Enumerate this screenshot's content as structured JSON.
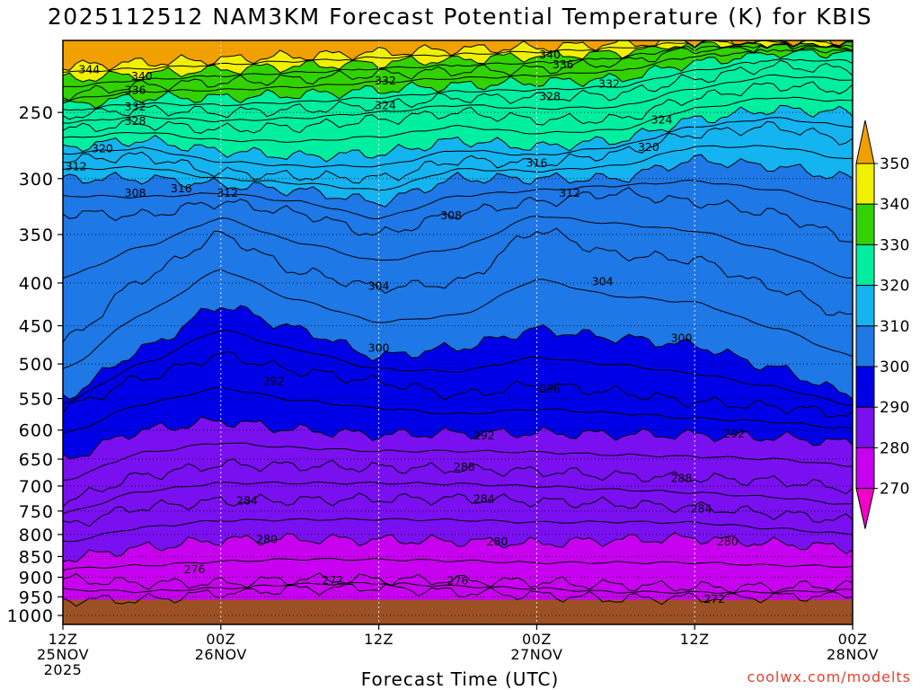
{
  "chart_data": {
    "type": "heatmap",
    "title": "2025112512 NAM3KM Forecast Potential Temperature (K) for KBIS",
    "xlabel": "Forecast Time (UTC)",
    "ylabel": "",
    "y_scale": "log (pressure)",
    "y_direction": "pressure decreasing upward",
    "yticks": [
      250,
      300,
      350,
      400,
      450,
      500,
      550,
      600,
      650,
      700,
      750,
      800,
      850,
      900,
      950,
      1000
    ],
    "ylim": [
      1025,
      205
    ],
    "x_ticks": [
      {
        "hours": 0,
        "l1": "12Z",
        "l2": "25NOV",
        "l3": "2025"
      },
      {
        "hours": 12,
        "l1": "00Z",
        "l2": "26NOV",
        "l3": ""
      },
      {
        "hours": 24,
        "l1": "12Z",
        "l2": "",
        "l3": ""
      },
      {
        "hours": 36,
        "l1": "00Z",
        "l2": "27NOV",
        "l3": ""
      },
      {
        "hours": 48,
        "l1": "12Z",
        "l2": "",
        "l3": ""
      },
      {
        "hours": 60,
        "l1": "00Z",
        "l2": "28NOV",
        "l3": ""
      }
    ],
    "xlim": [
      0,
      60
    ],
    "grid": true,
    "surface_pressure_hpa": 958,
    "color_levels": [
      {
        "from": 260,
        "to": 270,
        "color": "#f000c8"
      },
      {
        "from": 270,
        "to": 280,
        "color": "#c800f0"
      },
      {
        "from": 280,
        "to": 290,
        "color": "#7a10f0"
      },
      {
        "from": 290,
        "to": 300,
        "color": "#0000e6"
      },
      {
        "from": 300,
        "to": 310,
        "color": "#1e78e6"
      },
      {
        "from": 310,
        "to": 320,
        "color": "#14b4f0"
      },
      {
        "from": 320,
        "to": 330,
        "color": "#00eea0"
      },
      {
        "from": 330,
        "to": 340,
        "color": "#32d200"
      },
      {
        "from": 340,
        "to": 350,
        "color": "#f0f000"
      },
      {
        "from": 350,
        "to": 360,
        "color": "#f0a000"
      }
    ],
    "colorbar_labels": [
      350,
      340,
      330,
      320,
      310,
      300,
      290,
      280,
      270
    ],
    "isotherm_pressure_hpa": {
      "hours": [
        0,
        6,
        12,
        18,
        24,
        30,
        36,
        42,
        48,
        54,
        60
      ],
      "levels": {
        "272": [
          958,
          958,
          940,
          930,
          925,
          938,
          945,
          955,
          952,
          950,
          945
        ],
        "276": [
          905,
          915,
          915,
          905,
          905,
          908,
          912,
          920,
          925,
          925,
          920
        ],
        "280": [
          855,
          830,
          812,
          810,
          812,
          815,
          820,
          812,
          808,
          820,
          830
        ],
        "284": [
          780,
          742,
          730,
          728,
          725,
          725,
          730,
          735,
          742,
          755,
          770
        ],
        "288": [
          730,
          680,
          660,
          662,
          665,
          668,
          672,
          680,
          685,
          690,
          705
        ],
        "292": [
          650,
          600,
          585,
          600,
          608,
          605,
          605,
          607,
          608,
          612,
          622
        ],
        "296": [
          565,
          520,
          488,
          510,
          525,
          545,
          530,
          540,
          555,
          562,
          575
        ],
        "300": [
          548,
          480,
          425,
          455,
          490,
          478,
          455,
          465,
          475,
          505,
          545
        ],
        "304": [
          470,
          395,
          350,
          388,
          405,
          400,
          345,
          370,
          375,
          405,
          440
        ],
        "308": [
          330,
          332,
          320,
          330,
          350,
          330,
          320,
          312,
          320,
          330,
          355
        ],
        "312": [
          300,
          300,
          305,
          310,
          320,
          300,
          300,
          300,
          285,
          290,
          300
        ],
        "316": [
          285,
          282,
          295,
          298,
          300,
          285,
          288,
          280,
          265,
          260,
          270
        ],
        "320": [
          275,
          270,
          278,
          282,
          280,
          270,
          275,
          270,
          255,
          248,
          250
        ],
        "324": [
          262,
          258,
          262,
          260,
          255,
          250,
          255,
          255,
          240,
          232,
          235
        ],
        "328": [
          252,
          248,
          250,
          248,
          245,
          240,
          240,
          238,
          228,
          220,
          222
        ],
        "332": [
          245,
          240,
          240,
          238,
          235,
          232,
          230,
          228,
          218,
          212,
          212
        ],
        "336": [
          238,
          232,
          230,
          228,
          225,
          223,
          222,
          218,
          210,
          208,
          208
        ],
        "340": [
          228,
          225,
          222,
          220,
          218,
          216,
          214,
          212,
          206,
          206,
          206
        ],
        "344": [
          220,
          218,
          216,
          214,
          212,
          210,
          209,
          207,
          205,
          205,
          205
        ]
      }
    },
    "contour_labels": [
      {
        "text": "344",
        "hours": 2.0,
        "p": 222
      },
      {
        "text": "340",
        "hours": 6.0,
        "p": 226
      },
      {
        "text": "336",
        "hours": 5.5,
        "p": 235
      },
      {
        "text": "332",
        "hours": 5.5,
        "p": 246
      },
      {
        "text": "328",
        "hours": 5.5,
        "p": 256
      },
      {
        "text": "320",
        "hours": 3.0,
        "p": 276
      },
      {
        "text": "312",
        "hours": 1.0,
        "p": 290
      },
      {
        "text": "308",
        "hours": 5.5,
        "p": 312
      },
      {
        "text": "316",
        "hours": 9.0,
        "p": 308
      },
      {
        "text": "312",
        "hours": 12.5,
        "p": 312
      },
      {
        "text": "332",
        "hours": 24.5,
        "p": 229
      },
      {
        "text": "324",
        "hours": 24.5,
        "p": 245
      },
      {
        "text": "340",
        "hours": 37.0,
        "p": 213
      },
      {
        "text": "336",
        "hours": 38.0,
        "p": 219
      },
      {
        "text": "332",
        "hours": 41.5,
        "p": 231
      },
      {
        "text": "328",
        "hours": 37.0,
        "p": 239
      },
      {
        "text": "324",
        "hours": 45.5,
        "p": 255
      },
      {
        "text": "320",
        "hours": 44.5,
        "p": 275
      },
      {
        "text": "316",
        "hours": 36.0,
        "p": 287
      },
      {
        "text": "312",
        "hours": 38.5,
        "p": 312
      },
      {
        "text": "308",
        "hours": 29.5,
        "p": 332
      },
      {
        "text": "304",
        "hours": 24.0,
        "p": 403
      },
      {
        "text": "304",
        "hours": 41.0,
        "p": 398
      },
      {
        "text": "300",
        "hours": 24.0,
        "p": 478
      },
      {
        "text": "300",
        "hours": 47.0,
        "p": 465
      },
      {
        "text": "296",
        "hours": 37.0,
        "p": 535
      },
      {
        "text": "292",
        "hours": 16.0,
        "p": 524
      },
      {
        "text": "292",
        "hours": 32.0,
        "p": 609
      },
      {
        "text": "292",
        "hours": 51.0,
        "p": 606
      },
      {
        "text": "288",
        "hours": 30.5,
        "p": 664
      },
      {
        "text": "288",
        "hours": 47.0,
        "p": 685
      },
      {
        "text": "284",
        "hours": 14.0,
        "p": 728
      },
      {
        "text": "284",
        "hours": 32.0,
        "p": 725
      },
      {
        "text": "284",
        "hours": 48.5,
        "p": 745
      },
      {
        "text": "280",
        "hours": 15.5,
        "p": 810
      },
      {
        "text": "280",
        "hours": 33.0,
        "p": 815
      },
      {
        "text": "280",
        "hours": 50.5,
        "p": 815
      },
      {
        "text": "276",
        "hours": 10.0,
        "p": 880
      },
      {
        "text": "276",
        "hours": 30.0,
        "p": 908
      },
      {
        "text": "272",
        "hours": 20.5,
        "p": 907
      },
      {
        "text": "272",
        "hours": 49.5,
        "p": 955
      }
    ]
  },
  "watermark": "coolwx.com/modelts"
}
